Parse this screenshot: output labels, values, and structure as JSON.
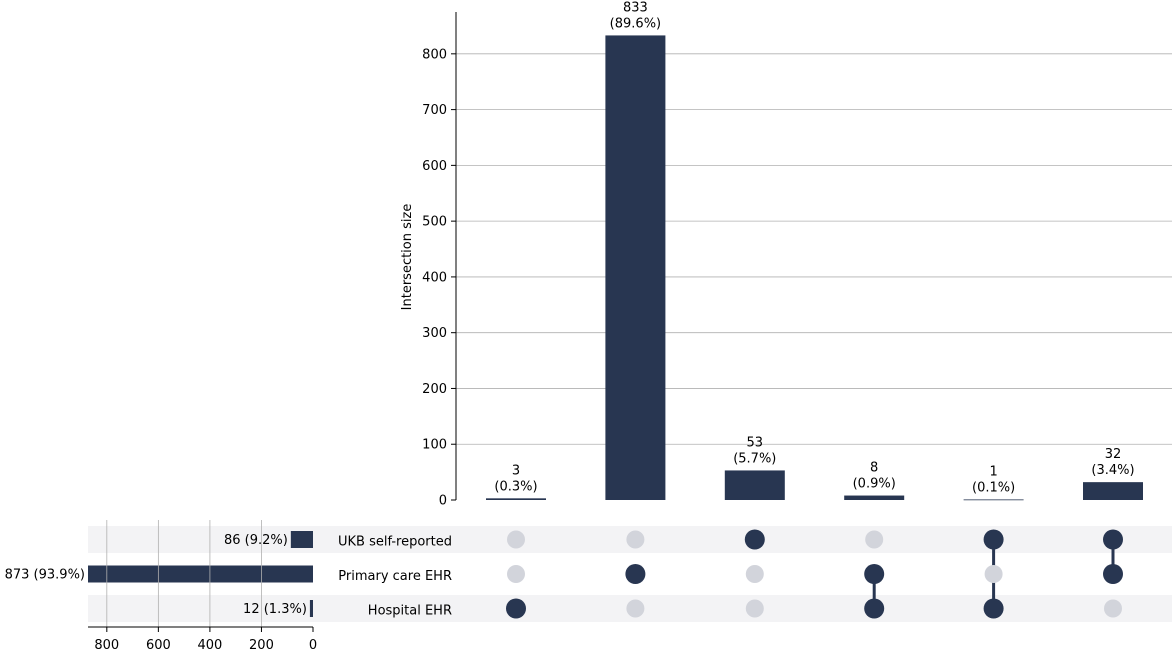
{
  "chart_data": {
    "type": "bar",
    "subtype": "upset",
    "ylabel": "Intersection size",
    "ylim": [
      0,
      875
    ],
    "yticks": [
      0,
      100,
      200,
      300,
      400,
      500,
      600,
      700,
      800
    ],
    "grid": true,
    "intersections": [
      {
        "value": 3,
        "count_label": "3",
        "pct_label": "(0.3%)",
        "members": [
          "Hospital EHR"
        ]
      },
      {
        "value": 833,
        "count_label": "833",
        "pct_label": "(89.6%)",
        "members": [
          "Primary care EHR"
        ]
      },
      {
        "value": 53,
        "count_label": "53",
        "pct_label": "(5.7%)",
        "members": [
          "UKB self-reported"
        ]
      },
      {
        "value": 8,
        "count_label": "8",
        "pct_label": "(0.9%)",
        "members": [
          "Primary care EHR",
          "Hospital EHR"
        ]
      },
      {
        "value": 1,
        "count_label": "1",
        "pct_label": "(0.1%)",
        "members": [
          "UKB self-reported",
          "Hospital EHR"
        ]
      },
      {
        "value": 32,
        "count_label": "32",
        "pct_label": "(3.4%)",
        "members": [
          "UKB self-reported",
          "Primary care EHR"
        ]
      }
    ],
    "sets": [
      {
        "name": "UKB self-reported",
        "value": 86,
        "label": "86 (9.2%)"
      },
      {
        "name": "Primary care EHR",
        "value": 873,
        "label": "873 (93.9%)"
      },
      {
        "name": "Hospital EHR",
        "value": 12,
        "label": "12 (1.3%)"
      }
    ],
    "set_axis": {
      "xlim": [
        0,
        873
      ],
      "xticks": [
        800,
        600,
        400,
        200,
        0
      ],
      "reversed": true,
      "grid": true
    },
    "colors": {
      "bar": "#283651",
      "dot_active": "#283651",
      "dot_inactive": "#d2d4db",
      "stripe": "#f3f3f5",
      "grid": "#b0b0b0",
      "axis": "#000000"
    }
  }
}
